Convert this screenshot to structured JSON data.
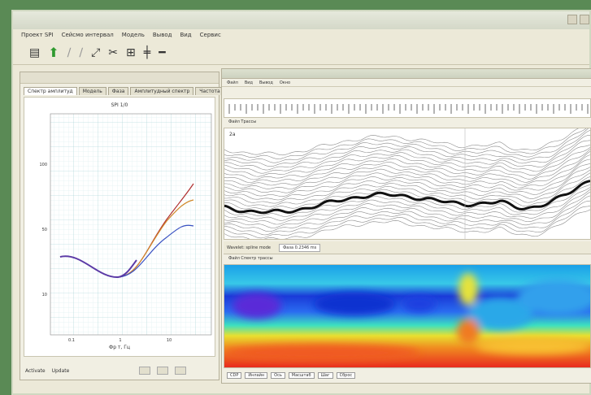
{
  "menubar": {
    "items": [
      "Проект SPI",
      "Сейсмо интервал",
      "Модель",
      "Вывод",
      "Вид",
      "Сервис"
    ]
  },
  "toolbar": {
    "icons": [
      "open-folder-icon",
      "arrow-up-icon",
      "pencil-icon",
      "eraser-icon",
      "zoom-icon",
      "cut-icon",
      "grid-icon",
      "plus-icon",
      "minus-icon"
    ]
  },
  "left_panel": {
    "tabs": [
      "Спектр амплитуд",
      "Модель",
      "Фаза",
      "Амплитудный спектр",
      "Частота"
    ],
    "plot_title": "SPI 1/0",
    "y_ticks": [
      "100",
      "50",
      "10"
    ],
    "x_ticks": [
      "0.1",
      "1",
      "10"
    ],
    "x_label": "Фр т, Гц",
    "footer": {
      "left_label": "Activate",
      "right_label": "Update"
    }
  },
  "right_panel": {
    "menu": [
      "Файл",
      "Вид",
      "Вывод",
      "Окно"
    ],
    "seismic_label": "2a",
    "seismic_bar": "Файл  Трассы",
    "status": {
      "mode": "Wavelet: spline mode",
      "scale": "Фаза 0.2346 ms"
    },
    "heatmap_bar": "Файл  Спектр трассы",
    "bottom_controls": [
      "CDP",
      "Инлайн",
      "Ось",
      "Масштаб",
      "Шаг",
      "Сброс"
    ]
  },
  "colors": {
    "curve_purple": "#5b3aa6",
    "curve_orange": "#d0882a",
    "curve_red": "#b03030",
    "curve_blue": "#3a52c2",
    "heat_low": "#1230d8",
    "heat_high": "#e8231f"
  }
}
